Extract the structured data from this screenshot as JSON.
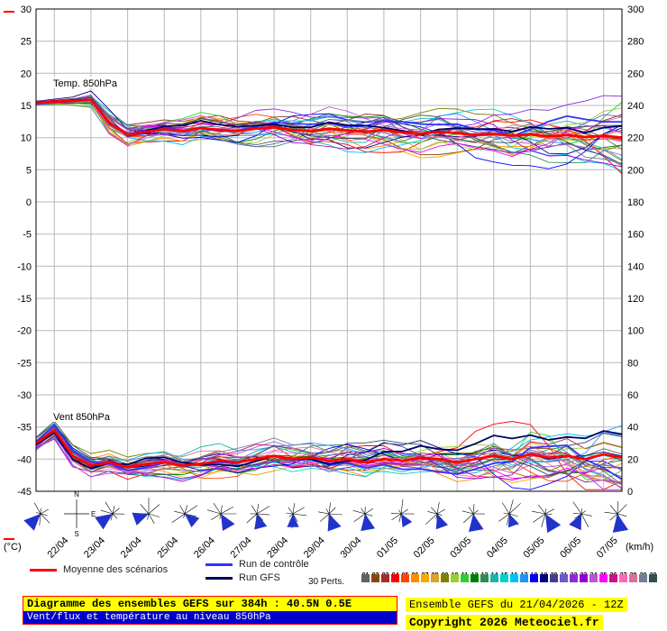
{
  "chart": {
    "left_axis": {
      "unit": "(°C)",
      "ticks": [
        30,
        25,
        20,
        15,
        10,
        5,
        0,
        -5,
        -10,
        -15,
        -20,
        -25,
        -30,
        -35,
        -40,
        -45
      ]
    },
    "right_axis": {
      "unit": "(km/h)",
      "ticks": [
        300,
        280,
        260,
        240,
        220,
        200,
        180,
        160,
        140,
        120,
        100,
        80,
        60,
        40,
        20,
        0
      ]
    },
    "dates": [
      "22/04",
      "23/04",
      "24/04",
      "25/04",
      "26/04",
      "27/04",
      "28/04",
      "29/04",
      "30/04",
      "01/05",
      "02/05",
      "03/05",
      "04/05",
      "05/05",
      "06/05",
      "07/05"
    ],
    "labels": {
      "temp": "Temp. 850hPa",
      "wind": "Vent 850hPa"
    },
    "compass": {
      "n": "N",
      "e": "E",
      "s": "S"
    }
  },
  "chart_data": {
    "type": "line",
    "title": "Diagramme des ensembles GEFS sur 384h : 40.5N 0.5E",
    "x_hours": {
      "start": 0,
      "step": 12,
      "end": 384
    },
    "temp_axis_range": [
      -45,
      30
    ],
    "wind_axis_range": [
      0,
      300
    ],
    "temp_mean": [
      15.4,
      15.6,
      15.7,
      15.9,
      12.3,
      10.4,
      10.9,
      11.3,
      11.0,
      11.5,
      11.2,
      11.0,
      11.4,
      11.6,
      11.2,
      11.0,
      11.4,
      11.1,
      10.9,
      11.2,
      10.8,
      10.6,
      10.9,
      10.7,
      10.4,
      10.6,
      10.3,
      10.5,
      10.2,
      10.4,
      10.1,
      10.3,
      10.0
    ],
    "wind_mean": [
      30,
      38,
      22,
      16,
      18,
      15,
      17,
      18,
      16,
      17,
      19,
      18,
      20,
      22,
      20,
      21,
      19,
      20,
      18,
      20,
      19,
      21,
      20,
      18,
      20,
      22,
      20,
      23,
      21,
      22,
      20,
      23,
      21
    ],
    "temp_spread": [
      0.2,
      0.3,
      0.5,
      1.0,
      1.8,
      1.5,
      1.2,
      1.2,
      1.3,
      1.4,
      1.5,
      1.5,
      1.6,
      1.6,
      1.7,
      1.7,
      1.8,
      1.8,
      1.9,
      2.0,
      2.0,
      2.1,
      2.2,
      2.2,
      2.3,
      2.4,
      2.5,
      2.5,
      2.6,
      2.7,
      2.8,
      2.9,
      3.0
    ],
    "wind_spread": [
      3,
      4,
      5,
      5,
      5,
      5,
      5,
      5,
      5,
      6,
      6,
      6,
      6,
      6,
      6,
      6,
      7,
      7,
      7,
      7,
      7,
      8,
      8,
      8,
      8,
      9,
      9,
      10,
      10,
      11,
      11,
      12,
      12
    ],
    "mean": {
      "name": "Moyenne des scénarios",
      "color": "#ff0000"
    },
    "control": {
      "name": "Run de contrôle",
      "color": "#3333ff"
    },
    "gfs": {
      "name": "Run GFS",
      "color": "#000066"
    },
    "members": {
      "count": 30,
      "colors": [
        "#606060",
        "#8b4513",
        "#a52a2a",
        "#ff0000",
        "#ff4500",
        "#ff8c00",
        "#ffa500",
        "#daa520",
        "#808000",
        "#9acd32",
        "#32cd32",
        "#008000",
        "#2e8b57",
        "#20b2aa",
        "#00ced1",
        "#00bfff",
        "#1e90ff",
        "#0000ff",
        "#000080",
        "#483d8b",
        "#6a5acd",
        "#8a2be2",
        "#9400d3",
        "#ba55d3",
        "#ff00ff",
        "#c71585",
        "#ff69b4",
        "#db7093",
        "#708090",
        "#2f4f4f"
      ]
    },
    "wind_barb_dirs": [
      225,
      235,
      250,
      130,
      150,
      165,
      180,
      160,
      170,
      150,
      160,
      170,
      160,
      150,
      205,
      170
    ],
    "wind_barb_color": "#2233cc"
  },
  "legend": {
    "perts_label": "30 Perts.",
    "pert_numbers": [
      "01",
      "02",
      "03",
      "04",
      "05",
      "06",
      "07",
      "08",
      "09",
      "10",
      "11",
      "12",
      "13",
      "14",
      "15",
      "16",
      "17",
      "18",
      "19",
      "20",
      "21",
      "22",
      "23",
      "24",
      "25",
      "26",
      "27",
      "28",
      "29",
      "30"
    ]
  },
  "footer": {
    "title": "Diagramme des ensembles GEFS sur 384h : 40.5N 0.5E",
    "subtitle": "Vent/flux et température au niveau 850hPa",
    "run_info": "Ensemble GEFS du 21/04/2026 - 12Z",
    "copyright": "Copyright 2026 Meteociel.fr"
  }
}
